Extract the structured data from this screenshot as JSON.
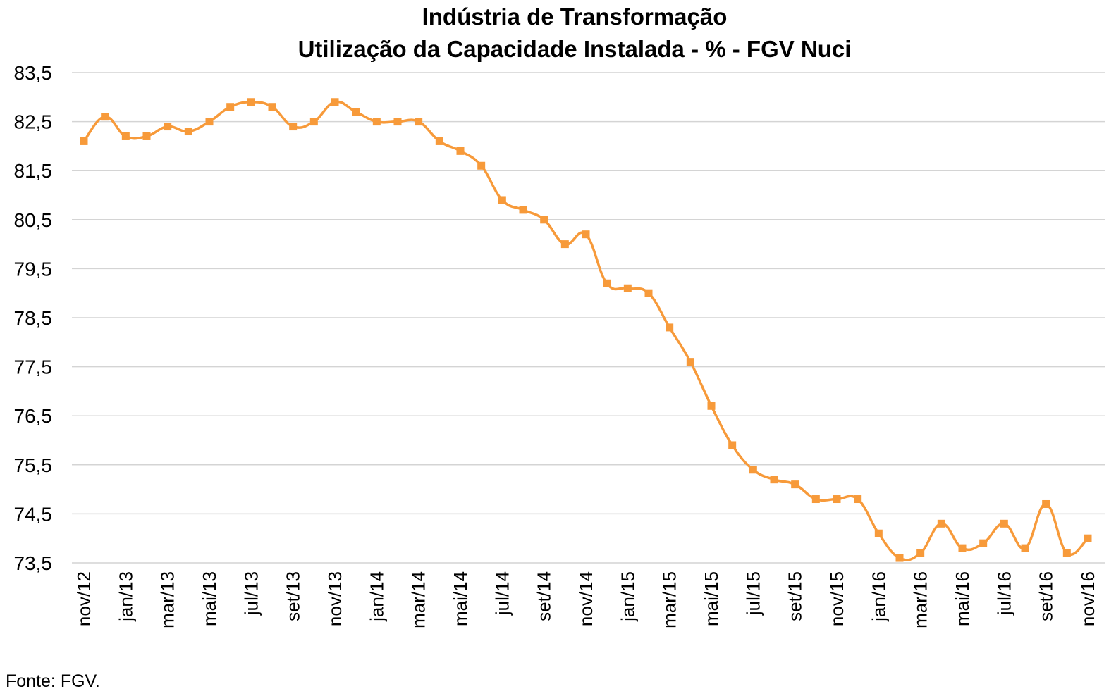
{
  "chart_data": {
    "type": "line",
    "title_line1": "Indústria de Transformação",
    "title_line2": "Utilização da Capacidade Instalada - % - FGV Nuci",
    "source": "Fonte: FGV.",
    "ylim": [
      73.5,
      83.5
    ],
    "y_ticks": [
      "83,5",
      "82,5",
      "81,5",
      "80,5",
      "79,5",
      "78,5",
      "77,5",
      "76,5",
      "75,5",
      "74,5",
      "73,5"
    ],
    "y_tick_values": [
      83.5,
      82.5,
      81.5,
      80.5,
      79.5,
      78.5,
      77.5,
      76.5,
      75.5,
      74.5,
      73.5
    ],
    "grid": true,
    "line_color": "#F79A3A",
    "x_labels": [
      "nov/12",
      "jan/13",
      "mar/13",
      "mai/13",
      "jul/13",
      "set/13",
      "nov/13",
      "jan/14",
      "mar/14",
      "mai/14",
      "jul/14",
      "set/14",
      "nov/14",
      "jan/15",
      "mar/15",
      "mai/15",
      "jul/15",
      "set/15",
      "nov/15",
      "jan/16",
      "mar/16",
      "mai/16",
      "jul/16",
      "set/16",
      "nov/16"
    ],
    "series": [
      {
        "values": [
          82.1,
          82.6,
          82.2,
          82.2,
          82.4,
          82.3,
          82.5,
          82.8,
          82.9,
          82.8,
          82.4,
          82.5,
          82.9,
          82.7,
          82.5,
          82.5,
          82.5,
          82.1,
          81.9,
          81.6,
          80.9,
          80.7,
          80.5,
          80.0,
          80.2,
          79.2,
          79.1,
          79.0,
          78.3,
          77.6,
          76.7,
          75.9,
          75.4,
          75.2,
          75.1,
          74.8,
          74.8,
          74.8,
          74.1,
          73.6,
          73.7,
          74.3,
          73.8,
          73.9,
          74.3,
          73.8,
          74.7,
          73.7,
          74.0
        ]
      }
    ]
  }
}
